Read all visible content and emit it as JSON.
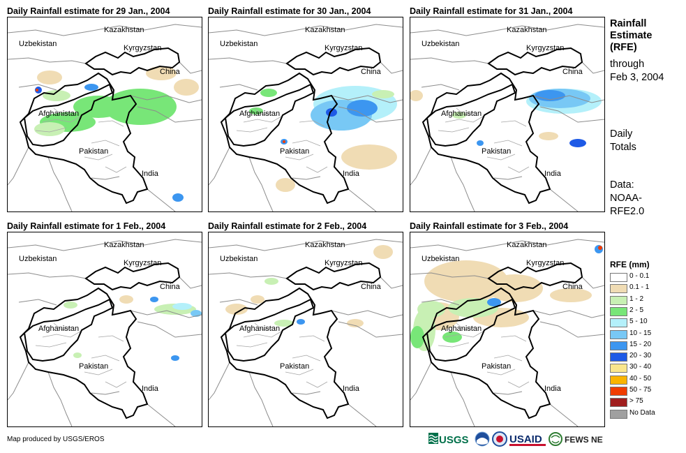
{
  "panels": [
    {
      "title": "Daily Rainfall estimate for 29 Jan., 2004"
    },
    {
      "title": "Daily Rainfall estimate for 30 Jan., 2004"
    },
    {
      "title": "Daily Rainfall estimate for 31 Jan., 2004"
    },
    {
      "title": "Daily Rainfall estimate for 1 Feb., 2004"
    },
    {
      "title": "Daily Rainfall estimate for 2 Feb., 2004"
    },
    {
      "title": "Daily Rainfall estimate for 3 Feb., 2004"
    }
  ],
  "map_labels": {
    "kazakhstan": "Kazakhstan",
    "uzbekistan": "Uzbekistan",
    "kyrgyzstan": "Kyrgyzstan",
    "china": "China",
    "afghanistan": "Afghanistan",
    "pakistan": "Pakistan",
    "india": "India"
  },
  "sidebar": {
    "title_line1": "Rainfall",
    "title_line2": "Estimate",
    "title_line3": "(RFE)",
    "through": "through",
    "date": "Feb 3, 2004",
    "daily": "Daily",
    "totals": "Totals",
    "data_label": "Data:",
    "data_source_1": "NOAA-",
    "data_source_2": "RFE2.0"
  },
  "legend": {
    "title": "RFE (mm)",
    "items": [
      {
        "label": "0 - 0.1",
        "color": "#ffffff"
      },
      {
        "label": "0.1 - 1",
        "color": "#f0dcb4"
      },
      {
        "label": "1 - 2",
        "color": "#c8f0b4"
      },
      {
        "label": "2 - 5",
        "color": "#78e678"
      },
      {
        "label": "5 - 10",
        "color": "#b4f0fa"
      },
      {
        "label": "10 - 15",
        "color": "#78c8f5"
      },
      {
        "label": "15 - 20",
        "color": "#3c96f0"
      },
      {
        "label": "20 - 30",
        "color": "#1e5ae6"
      },
      {
        "label": "30 - 40",
        "color": "#fae68c"
      },
      {
        "label": "40 - 50",
        "color": "#fab400"
      },
      {
        "label": "50 - 75",
        "color": "#f03c00"
      },
      {
        "label": "> 75",
        "color": "#a01e1e"
      },
      {
        "label": "No Data",
        "color": "#a0a0a0"
      }
    ]
  },
  "credit": "Map produced by USGS/EROS",
  "logos": {
    "usgs": "USGS",
    "usaid": "USAID",
    "fews": "FEWS NET"
  }
}
